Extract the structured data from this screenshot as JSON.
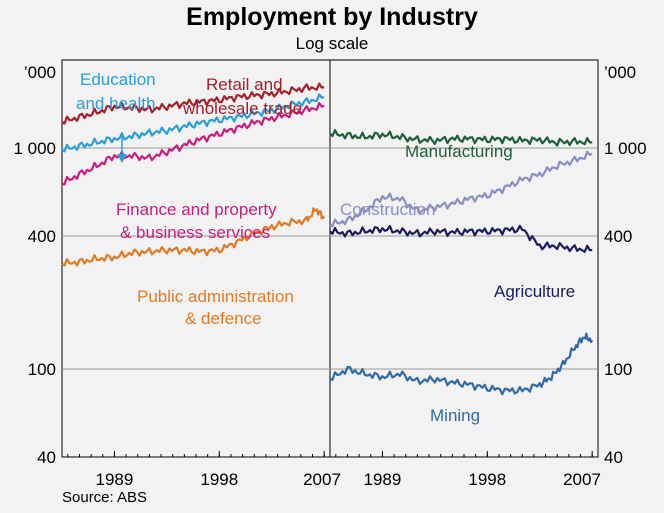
{
  "title": "Employment by Industry",
  "subtitle": "Log scale",
  "source": "Source: ABS",
  "chart_data": {
    "type": "line",
    "scale": "log",
    "ylim": [
      40,
      2500
    ],
    "yticks": [
      {
        "value": 40,
        "label": "40"
      },
      {
        "value": 100,
        "label": "100"
      },
      {
        "value": 400,
        "label": "400"
      },
      {
        "value": 1000,
        "label": "1 000"
      }
    ],
    "yunit_label": "’000",
    "xlim": [
      1984.5,
      2007.5
    ],
    "xticks": [
      {
        "value": 1989,
        "label": "1989"
      },
      {
        "value": 1998,
        "label": "1998"
      },
      {
        "value": 2007,
        "label": "2007"
      }
    ],
    "panels": [
      {
        "id": "left",
        "series": [
          {
            "name": "Retail and wholesale trade",
            "label_lines": [
              "Retail and",
              "wholesale trade"
            ],
            "color": "#a3202c",
            "x": [
              1984.5,
              1986,
              1987.5,
              1989,
              1990.5,
              1992,
              1993.5,
              1995,
              1996.5,
              1998,
              1999.5,
              2001,
              2002.5,
              2004,
              2005.5,
              2007
            ],
            "y": [
              1310,
              1380,
              1450,
              1540,
              1520,
              1490,
              1540,
              1590,
              1620,
              1650,
              1700,
              1730,
              1760,
              1810,
              1870,
              1880
            ]
          },
          {
            "name": "Education and health",
            "label_lines": [
              "Education",
              "and health"
            ],
            "color": "#2a9fd6",
            "x": [
              1984.5,
              1986,
              1987.5,
              1989,
              1990.5,
              1992,
              1993.5,
              1995,
              1996.5,
              1998,
              1999.5,
              2001,
              2002.5,
              2004,
              2005.5,
              2007
            ],
            "y": [
              980,
              1020,
              1060,
              1100,
              1130,
              1170,
              1200,
              1250,
              1300,
              1340,
              1380,
              1430,
              1480,
              1560,
              1620,
              1700
            ]
          },
          {
            "name": "Finance and property & business services",
            "label_lines": [
              "Finance and property",
              "& business services"
            ],
            "color": "#c71e7f",
            "x": [
              1984.5,
              1986,
              1987.5,
              1989,
              1990.5,
              1992,
              1993.5,
              1995,
              1996.5,
              1998,
              1999.5,
              2001,
              2002.5,
              2004,
              2005.5,
              2007
            ],
            "y": [
              690,
              760,
              830,
              920,
              920,
              900,
              960,
              1030,
              1100,
              1160,
              1230,
              1300,
              1360,
              1420,
              1490,
              1550
            ]
          },
          {
            "name": "Public administration & defence",
            "label_lines": [
              "Public administration",
              "& defence"
            ],
            "color": "#e07b24",
            "x": [
              1984.5,
              1986,
              1987.5,
              1989,
              1990.5,
              1992,
              1993.5,
              1995,
              1996.5,
              1998,
              1999.5,
              2001,
              2002.5,
              2004,
              2005.5,
              2006.3,
              2007
            ],
            "y": [
              300,
              305,
              315,
              320,
              335,
              340,
              345,
              345,
              340,
              345,
              375,
              410,
              440,
              460,
              470,
              530,
              480
            ]
          }
        ]
      },
      {
        "id": "right",
        "series": [
          {
            "name": "Manufacturing",
            "label_lines": [
              "Manufacturing"
            ],
            "color": "#1e5e3a",
            "x": [
              1984.5,
              1986,
              1987.5,
              1989,
              1990.5,
              1992,
              1993.5,
              1995,
              1996.5,
              1998,
              1999.5,
              2001,
              2002.5,
              2004,
              2005.5,
              2007
            ],
            "y": [
              1160,
              1140,
              1120,
              1150,
              1120,
              1090,
              1080,
              1100,
              1100,
              1090,
              1100,
              1080,
              1090,
              1060,
              1070,
              1060
            ]
          },
          {
            "name": "Construction",
            "label_lines": [
              "Construction"
            ],
            "color": "#8a8fc0",
            "x": [
              1984.5,
              1986,
              1987.5,
              1989,
              1990.5,
              1992,
              1993.5,
              1995,
              1996.5,
              1998,
              1999.5,
              2001,
              2002.5,
              2004,
              2005.5,
              2007
            ],
            "y": [
              450,
              470,
              520,
              600,
              590,
              520,
              540,
              560,
              590,
              610,
              660,
              720,
              760,
              830,
              880,
              940
            ]
          },
          {
            "name": "Agriculture",
            "label_lines": [
              "Agriculture"
            ],
            "color": "#1c1c5c",
            "x": [
              1984.5,
              1986,
              1987.5,
              1989,
              1990.5,
              1992,
              1993.5,
              1995,
              1996.5,
              1998,
              1999.5,
              2001,
              2002.5,
              2004,
              2005.5,
              2007
            ],
            "y": [
              420,
              410,
              420,
              430,
              420,
              410,
              420,
              415,
              420,
              420,
              425,
              430,
              360,
              360,
              350,
              345
            ]
          },
          {
            "name": "Mining",
            "label_lines": [
              "Mining"
            ],
            "color": "#2f6aa6",
            "x": [
              1984.5,
              1986,
              1987.5,
              1989,
              1990.5,
              1992,
              1993.5,
              1995,
              1996.5,
              1998,
              1999.5,
              2001,
              2002.5,
              2003.5,
              2004.5,
              2005.5,
              2006.3,
              2007
            ],
            "y": [
              90,
              100,
              95,
              92,
              95,
              88,
              90,
              87,
              85,
              82,
              80,
              80,
              85,
              92,
              105,
              125,
              140,
              135
            ]
          }
        ]
      }
    ]
  }
}
